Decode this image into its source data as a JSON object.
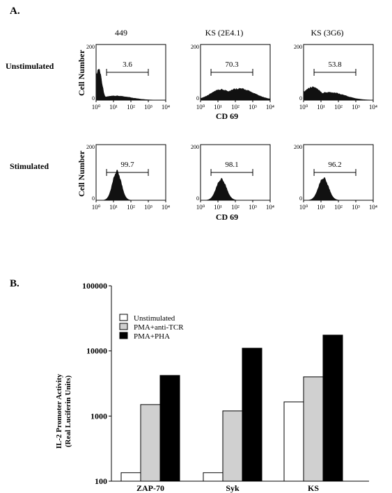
{
  "panel_a": {
    "label": "A.",
    "columns": [
      "449",
      "KS (2E4.1)",
      "KS (3G6)"
    ],
    "rows": [
      "Unstimulated",
      "Stimulated"
    ],
    "y_axis_label": "Cell Number",
    "x_axis_label": "CD 69",
    "y_max_tick": "200",
    "y_min_tick": "0",
    "x_ticks": [
      "10⁰",
      "10¹",
      "10²",
      "10³",
      "10⁴"
    ]
  },
  "panel_b": {
    "label": "B."
  },
  "chart_data": [
    {
      "type": "area",
      "panel": "A",
      "row": "Unstimulated",
      "column": "449",
      "xscale": "log",
      "xlim": [
        1,
        10000
      ],
      "ylim": [
        0,
        200
      ],
      "marker_value": "3.6",
      "marker_range": [
        4,
        1000
      ],
      "distribution": {
        "peak_log10": 0.15,
        "width": 0.25,
        "height": 0.6,
        "tail": 0.08
      }
    },
    {
      "type": "area",
      "panel": "A",
      "row": "Unstimulated",
      "column": "KS (2E4.1)",
      "xscale": "log",
      "xlim": [
        1,
        10000
      ],
      "ylim": [
        0,
        200
      ],
      "marker_value": "70.3",
      "marker_range": [
        4,
        1000
      ],
      "distribution": {
        "peak_log10": 1.2,
        "width": 0.9,
        "height": 0.2,
        "tail": 0.22
      }
    },
    {
      "type": "area",
      "panel": "A",
      "row": "Unstimulated",
      "column": "KS (3G6)",
      "xscale": "log",
      "xlim": [
        1,
        10000
      ],
      "ylim": [
        0,
        200
      ],
      "marker_value": "53.8",
      "marker_range": [
        4,
        1000
      ],
      "distribution": {
        "peak_log10": 0.5,
        "width": 0.7,
        "height": 0.25,
        "tail": 0.15
      }
    },
    {
      "type": "area",
      "panel": "A",
      "row": "Stimulated",
      "column": "449",
      "xscale": "log",
      "xlim": [
        1,
        10000
      ],
      "ylim": [
        0,
        200
      ],
      "marker_value": "99.7",
      "marker_range": [
        4,
        1000
      ],
      "distribution": {
        "peak_log10": 1.2,
        "width": 0.35,
        "height": 0.55,
        "tail": 0
      }
    },
    {
      "type": "area",
      "panel": "A",
      "row": "Stimulated",
      "column": "KS (2E4.1)",
      "xscale": "log",
      "xlim": [
        1,
        10000
      ],
      "ylim": [
        0,
        200
      ],
      "marker_value": "98.1",
      "marker_range": [
        4,
        1000
      ],
      "distribution": {
        "peak_log10": 1.2,
        "width": 0.4,
        "height": 0.4,
        "tail": 0
      }
    },
    {
      "type": "area",
      "panel": "A",
      "row": "Stimulated",
      "column": "KS (3G6)",
      "xscale": "log",
      "xlim": [
        1,
        10000
      ],
      "ylim": [
        0,
        200
      ],
      "marker_value": "96.2",
      "marker_range": [
        4,
        1000
      ],
      "distribution": {
        "peak_log10": 1.15,
        "width": 0.4,
        "height": 0.42,
        "tail": 0
      }
    },
    {
      "type": "bar",
      "panel": "B",
      "yscale": "log",
      "ylim": [
        100,
        100000
      ],
      "yticks": [
        "100",
        "1000",
        "10000",
        "100000"
      ],
      "ylabel": "IL-2 Promoter Activity",
      "ylabel2": "(Real Luciferin Units)",
      "categories": [
        "ZAP-70",
        "Syk",
        "KS"
      ],
      "legend_position": "top-left",
      "series": [
        {
          "name": "Unstimulated",
          "color": "#ffffff",
          "values": [
            135,
            135,
            1650
          ]
        },
        {
          "name": "PMA+anti-TCR",
          "color": "#d0d0d0",
          "values": [
            1500,
            1200,
            4000
          ]
        },
        {
          "name": "PMA+PHA",
          "color": "#000000",
          "values": [
            4200,
            11000,
            17500
          ]
        }
      ]
    }
  ]
}
